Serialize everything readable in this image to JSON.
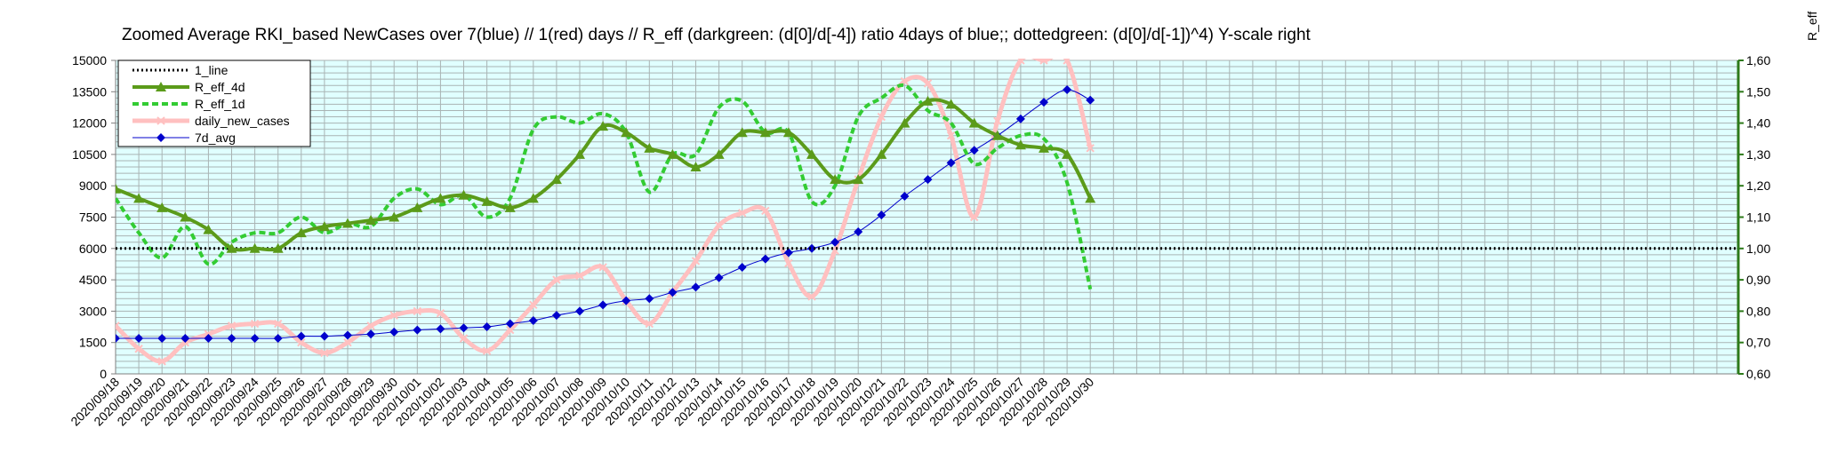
{
  "chart_data": {
    "type": "line",
    "title": "Zoomed Average RKI_based NewCases over 7(blue) // 1(red) days //  R_eff (darkgreen: (d[0]/d[-4]) ratio 4days of blue;; dottedgreen: (d[0]/d[-1])^4) Y-scale right",
    "y2label": "R_eff",
    "x": [
      "2020/09/18",
      "2020/09/19",
      "2020/09/20",
      "2020/09/21",
      "2020/09/22",
      "2020/09/23",
      "2020/09/24",
      "2020/09/25",
      "2020/09/26",
      "2020/09/27",
      "2020/09/28",
      "2020/09/29",
      "2020/09/30",
      "2020/10/01",
      "2020/10/02",
      "2020/10/03",
      "2020/10/04",
      "2020/10/05",
      "2020/10/06",
      "2020/10/07",
      "2020/10/08",
      "2020/10/09",
      "2020/10/10",
      "2020/10/11",
      "2020/10/12",
      "2020/10/13",
      "2020/10/14",
      "2020/10/15",
      "2020/10/16",
      "2020/10/17",
      "2020/10/18",
      "2020/10/19",
      "2020/10/20",
      "2020/10/21",
      "2020/10/22",
      "2020/10/23",
      "2020/10/24",
      "2020/10/25",
      "2020/10/26",
      "2020/10/27",
      "2020/10/28",
      "2020/10/29",
      "2020/10/30"
    ],
    "ylim": [
      0,
      15000
    ],
    "yticks": [
      "0",
      "1500",
      "3000",
      "4500",
      "6000",
      "7500",
      "9000",
      "10500",
      "12000",
      "13500",
      "15000"
    ],
    "y2lim": [
      0.6,
      1.6
    ],
    "y2ticks": [
      "0,60",
      "0,70",
      "0,80",
      "0,90",
      "1,00",
      "1,10",
      "1,20",
      "1,30",
      "1,40",
      "1,50",
      "1,60"
    ],
    "grid": true,
    "legend_position": "top-left",
    "series": [
      {
        "name": "1_line",
        "axis": "right",
        "color": "#000000",
        "style": "dotted",
        "values": [
          1,
          1,
          1,
          1,
          1,
          1,
          1,
          1,
          1,
          1,
          1,
          1,
          1,
          1,
          1,
          1,
          1,
          1,
          1,
          1,
          1,
          1,
          1,
          1,
          1,
          1,
          1,
          1,
          1,
          1,
          1,
          1,
          1,
          1,
          1,
          1,
          1,
          1,
          1,
          1,
          1,
          1,
          1
        ]
      },
      {
        "name": "R_eff_4d",
        "axis": "right",
        "color": "#5b9b1a",
        "style": "solid-triangle",
        "values": [
          1.19,
          1.16,
          1.13,
          1.1,
          1.06,
          1.0,
          1.0,
          1.0,
          1.05,
          1.07,
          1.08,
          1.09,
          1.1,
          1.13,
          1.16,
          1.17,
          1.15,
          1.13,
          1.16,
          1.22,
          1.3,
          1.39,
          1.37,
          1.32,
          1.3,
          1.26,
          1.3,
          1.37,
          1.37,
          1.37,
          1.3,
          1.22,
          1.22,
          1.3,
          1.4,
          1.47,
          1.46,
          1.4,
          1.36,
          1.33,
          1.32,
          1.3,
          1.16
        ]
      },
      {
        "name": "R_eff_1d",
        "axis": "right",
        "color": "#33cc33",
        "style": "dashed",
        "values": [
          1.16,
          1.05,
          0.97,
          1.07,
          0.95,
          1.02,
          1.05,
          1.05,
          1.1,
          1.05,
          1.08,
          1.07,
          1.16,
          1.19,
          1.14,
          1.17,
          1.1,
          1.16,
          1.38,
          1.42,
          1.4,
          1.43,
          1.37,
          1.18,
          1.3,
          1.3,
          1.45,
          1.47,
          1.37,
          1.37,
          1.15,
          1.2,
          1.42,
          1.48,
          1.52,
          1.44,
          1.4,
          1.27,
          1.32,
          1.36,
          1.35,
          1.21,
          0.87
        ]
      },
      {
        "name": "daily_new_cases",
        "axis": "left",
        "color": "#ffc0c0",
        "style": "thick",
        "values": [
          2300,
          1200,
          600,
          1500,
          1900,
          2300,
          2400,
          2400,
          1500,
          1000,
          1500,
          2300,
          2800,
          3000,
          2900,
          1700,
          1100,
          2100,
          3300,
          4500,
          4700,
          5100,
          3500,
          2400,
          3900,
          5400,
          7100,
          7700,
          7800,
          5300,
          3700,
          5900,
          9300,
          12300,
          14000,
          13900,
          11400,
          7500,
          12100,
          15000,
          15000,
          15000,
          10800
        ]
      },
      {
        "name": "7d_avg",
        "axis": "left",
        "color": "#0000cc",
        "style": "diamond",
        "values": [
          1700,
          1700,
          1700,
          1700,
          1700,
          1700,
          1700,
          1700,
          1800,
          1800,
          1850,
          1900,
          2000,
          2100,
          2150,
          2200,
          2250,
          2400,
          2550,
          2800,
          3000,
          3300,
          3500,
          3600,
          3900,
          4150,
          4600,
          5100,
          5500,
          5800,
          6000,
          6300,
          6800,
          7600,
          8500,
          9300,
          10100,
          10700,
          11400,
          12200,
          13000,
          13600,
          13100
        ]
      }
    ]
  }
}
